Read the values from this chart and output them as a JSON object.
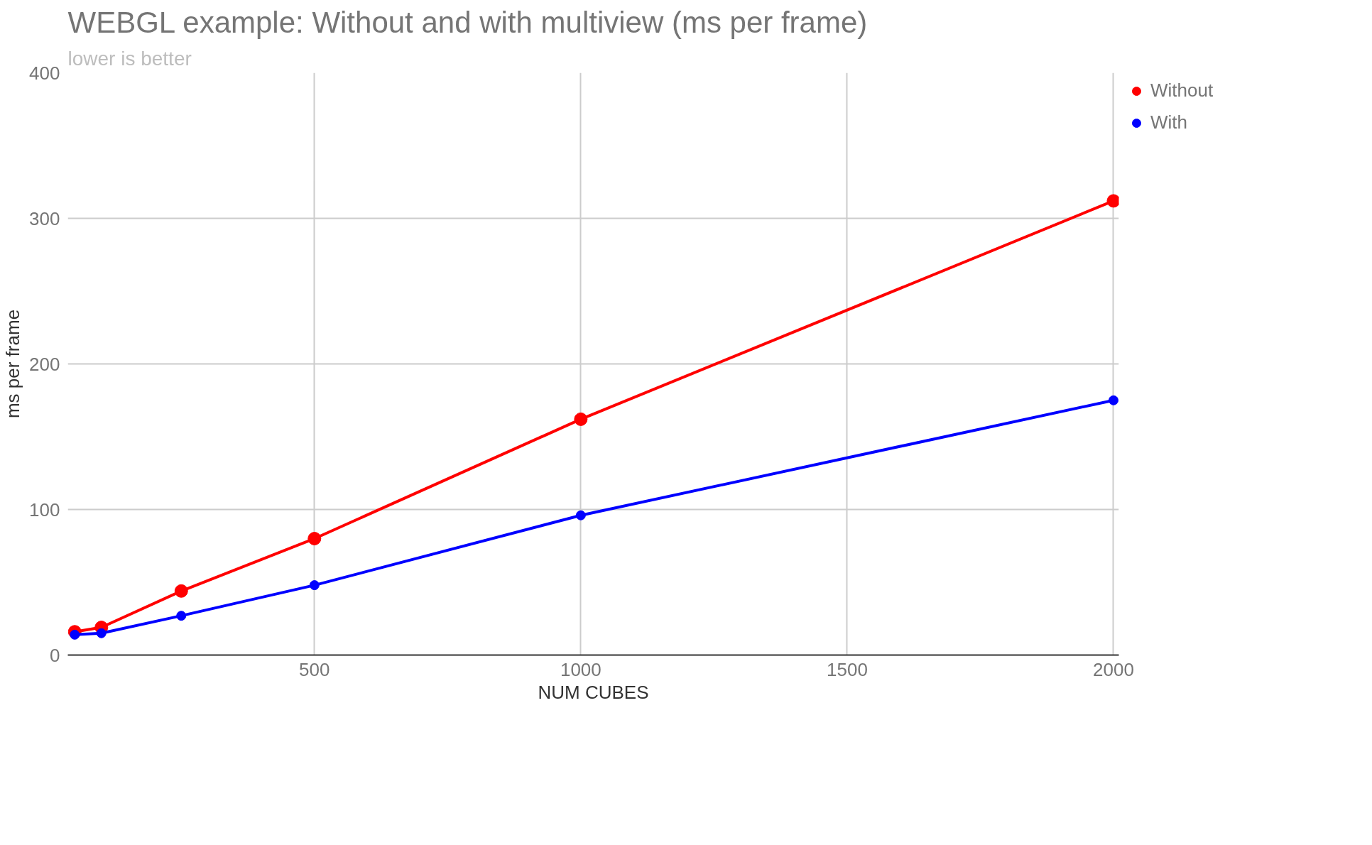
{
  "chart_data": {
    "type": "line",
    "title": "WEBGL example: Without and with multiview (ms per frame)",
    "subtitle": "lower is better",
    "xlabel": "NUM CUBES",
    "ylabel": "ms per frame",
    "x": [
      50,
      100,
      250,
      500,
      1000,
      2000
    ],
    "series": [
      {
        "name": "Without",
        "color": "#ff0000",
        "values": [
          16,
          19,
          44,
          80,
          162,
          312
        ]
      },
      {
        "name": "With",
        "color": "#0000ff",
        "values": [
          14,
          15,
          27,
          48,
          96,
          175
        ]
      }
    ],
    "xlim": [
      37,
      2010
    ],
    "ylim": [
      0,
      400
    ],
    "xticks": [
      500,
      1000,
      1500,
      2000
    ],
    "yticks": [
      0,
      100,
      200,
      300,
      400
    ],
    "grid": true,
    "legend": "top right",
    "marker": "circle",
    "line_style": "solid"
  }
}
